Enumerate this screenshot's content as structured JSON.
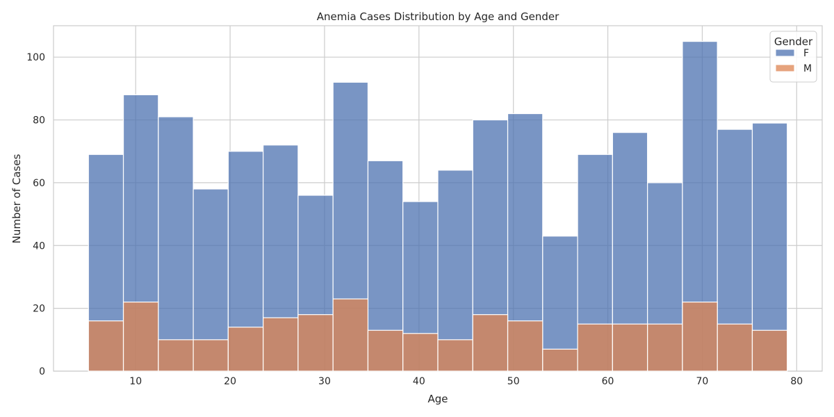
{
  "chart_data": {
    "type": "bar",
    "title": "Anemia Cases Distribution by Age and Gender",
    "xlabel": "Age",
    "ylabel": "Number of Cases",
    "xlim": [
      1.3,
      82.7
    ],
    "ylim": [
      0,
      110
    ],
    "xticks": [
      10,
      20,
      30,
      40,
      50,
      60,
      70,
      80
    ],
    "yticks": [
      0,
      20,
      40,
      60,
      80,
      100
    ],
    "grid": true,
    "legend": {
      "title": "Gender",
      "placement": "top-right"
    },
    "bin_edges": [
      5,
      8.7,
      12.4,
      16.1,
      19.8,
      23.5,
      27.2,
      30.9,
      34.6,
      38.3,
      42.0,
      45.7,
      49.4,
      53.1,
      56.8,
      60.5,
      64.2,
      67.9,
      71.6,
      75.3,
      79.0
    ],
    "series": [
      {
        "name": "F",
        "color": "#4c72b0",
        "values": [
          69,
          88,
          81,
          58,
          70,
          72,
          56,
          92,
          67,
          54,
          64,
          80,
          82,
          43,
          69,
          76,
          60,
          105,
          77,
          79
        ]
      },
      {
        "name": "M",
        "color": "#dd8452",
        "values": [
          16,
          22,
          10,
          10,
          14,
          17,
          18,
          23,
          13,
          12,
          10,
          18,
          16,
          7,
          15,
          15,
          15,
          22,
          15,
          13
        ]
      }
    ]
  }
}
